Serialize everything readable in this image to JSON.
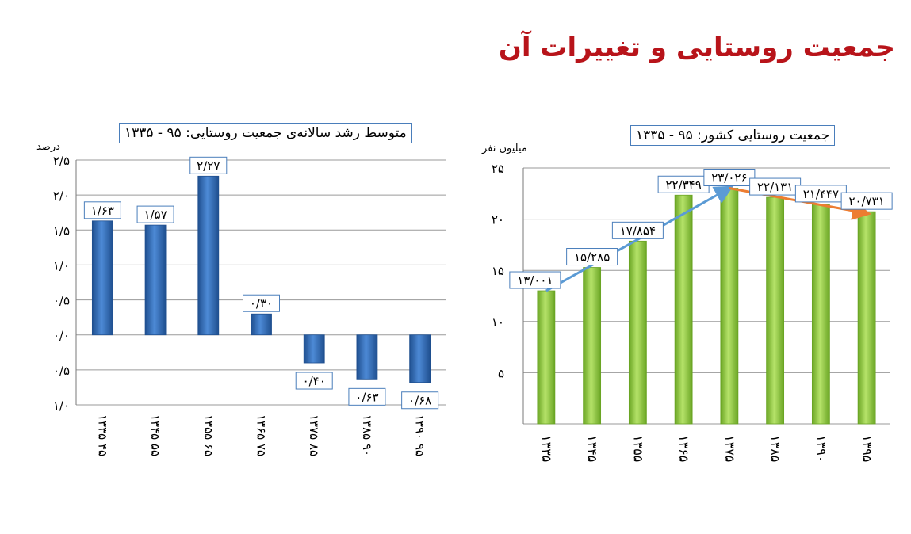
{
  "page_title": "جمعیت روستایی و تغییرات آن",
  "chart_data": [
    {
      "type": "bar",
      "title": "متوسط رشد سالانه‌ی جمعیت روستایی: ۹۵ - ۱۳۳۵",
      "ylabel": "درصد",
      "ylim": [
        -1.0,
        2.5
      ],
      "ytick_values": [
        2.5,
        2.0,
        1.5,
        1.0,
        0.5,
        0.0,
        -0.5,
        -1.0
      ],
      "ytick_labels": [
        "۲/۵",
        "۲/۰",
        "۱/۵",
        "۱/۰",
        "۰/۵",
        "۰/۰",
        "۰/۵",
        "۱/۰"
      ],
      "grid": true,
      "color": "#2e6bb8",
      "categories": [
        "۱۳۳۵ ۴۵",
        "۱۳۴۵ ۵۵",
        "۱۳۵۵ ۶۵",
        "۱۳۶۵ ۷۵",
        "۱۳۷۵ ۸۵",
        "۱۳۸۵ ۹۰",
        "۱۳۹۰ ۹۵"
      ],
      "values": [
        1.63,
        1.57,
        2.27,
        0.3,
        -0.4,
        -0.63,
        -0.68
      ],
      "value_labels": [
        "۱/۶۳",
        "۱/۵۷",
        "۲/۲۷",
        "۰/۳۰",
        "۰/۴۰",
        "۰/۶۳",
        "۰/۶۸"
      ]
    },
    {
      "type": "bar",
      "title": "جمعیت روستایی کشور: ۹۵ - ۱۳۳۵",
      "ylabel": "میلیون نفر",
      "ylim": [
        0,
        25
      ],
      "ytick_values": [
        25,
        20,
        15,
        10,
        5,
        0
      ],
      "ytick_labels": [
        "۲۵",
        "۲۰",
        "۱۵",
        "۱۰",
        "۵",
        ""
      ],
      "grid": true,
      "color": "#8ccd3c",
      "categories": [
        "۱۳۳۵",
        "۱۳۴۵",
        "۱۳۵۵",
        "۱۳۶۵",
        "۱۳۷۵",
        "۱۳۸۵",
        "۱۳۹۰",
        "۱۳۹۵"
      ],
      "values": [
        13.001,
        15.285,
        17.854,
        22.349,
        23.026,
        22.131,
        21.447,
        20.731
      ],
      "value_labels": [
        "۱۳/۰۰۱",
        "۱۵/۲۸۵",
        "۱۷/۸۵۴",
        "۲۲/۳۴۹",
        "۲۳/۰۲۶",
        "۲۲/۱۳۱",
        "۲۱/۴۴۷",
        "۲۰/۷۳۱"
      ],
      "trend_arrows": [
        {
          "from": "۱۳۳۵",
          "to": "۱۳۷۵",
          "color": "#5b9bd5"
        },
        {
          "from": "۱۳۷۵",
          "to": "۱۳۹۵",
          "color": "#ed7d31"
        }
      ]
    }
  ]
}
